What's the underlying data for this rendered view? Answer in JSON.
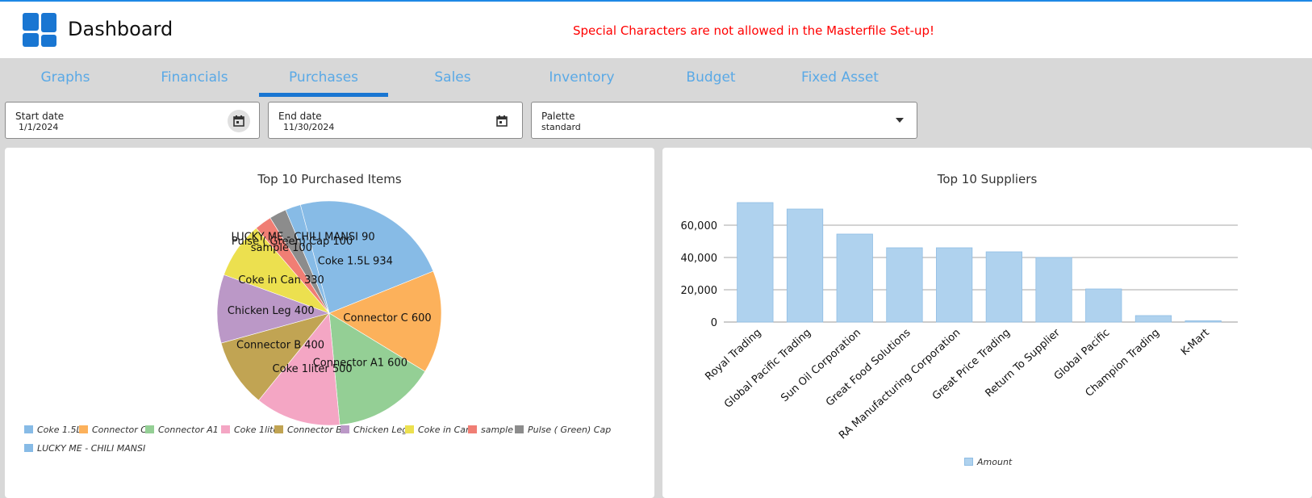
{
  "header": {
    "title": "Dashboard",
    "warning": "Special Characters are not allowed in the Masterfile Set-up!",
    "logo_icon": "grid-logo-icon",
    "accent": "#1976d2",
    "warning_color": "#ff0000"
  },
  "tabs": [
    {
      "label": "Graphs"
    },
    {
      "label": "Financials"
    },
    {
      "label": "Purchases",
      "active": true
    },
    {
      "label": "Sales"
    },
    {
      "label": "Inventory"
    },
    {
      "label": "Budget"
    },
    {
      "label": "Fixed Asset"
    }
  ],
  "filters": {
    "start_date": {
      "label": "Start date",
      "value": "1/1/2024",
      "icon": "calendar-icon"
    },
    "end_date": {
      "label": "End date",
      "value": "11/30/2024",
      "icon": "calendar-icon"
    },
    "palette": {
      "label": "Palette",
      "value": "standard",
      "icon": "chevron-down-icon"
    }
  },
  "pie_panel": {
    "title": "Top 10 Purchased Items"
  },
  "bar_panel": {
    "title": "Top 10 Suppliers"
  },
  "chart_data": [
    {
      "type": "pie",
      "title": "Top 10 Purchased Items",
      "slices": [
        {
          "name": "Coke 1.5L",
          "value": 934,
          "label": "Coke 1.5L 934",
          "color": "#87bbe6"
        },
        {
          "name": "Connector C",
          "value": 600,
          "label": "Connector C 600",
          "color": "#fcb15b"
        },
        {
          "name": "Connector A1",
          "value": 600,
          "label": "Connector A1 600",
          "color": "#94cf95"
        },
        {
          "name": "Coke 1liter",
          "value": 500,
          "label": "Coke 1liter 500",
          "color": "#f4a6c4"
        },
        {
          "name": "Connector B",
          "value": 400,
          "label": "Connector B 400",
          "color": "#c1a453"
        },
        {
          "name": "Chicken Leg",
          "value": 400,
          "label": "Chicken Leg 400",
          "color": "#bb98c7"
        },
        {
          "name": "Coke in Can",
          "value": 330,
          "label": "Coke in Can 330",
          "color": "#ece04f"
        },
        {
          "name": "sample",
          "value": 100,
          "label": "sample 100",
          "color": "#f07e74"
        },
        {
          "name": "Pulse ( Green) Cap",
          "value": 100,
          "label": "Pulse ( Green) Cap 100",
          "color": "#8c8c8c"
        },
        {
          "name": "LUCKY ME - CHILI MANSI",
          "value": 90,
          "label": "LUCKY ME - CHILI MANSI 90",
          "color": "#87bbe6"
        }
      ],
      "legend_position": "bottom"
    },
    {
      "type": "bar",
      "title": "Top 10 Suppliers",
      "categories": [
        "Royal Trading",
        "Global Pacific Trading",
        "Sun Oil Corporation",
        "Great Food Solutions",
        "RA Manufacturing Corporation",
        "Great Price Trading",
        "Return To Supplier",
        "Global Pacific",
        "Champion Trading",
        "K-Mart"
      ],
      "series": [
        {
          "name": "Amount",
          "values": [
            74000,
            70000,
            54500,
            46000,
            46000,
            43500,
            40000,
            20500,
            4000,
            800
          ],
          "color": "#afd2ee"
        }
      ],
      "yticks": [
        "0",
        "20,000",
        "40,000",
        "60,000"
      ],
      "ylim": [
        0,
        80000
      ],
      "grid": true,
      "legend_position": "bottom"
    }
  ]
}
